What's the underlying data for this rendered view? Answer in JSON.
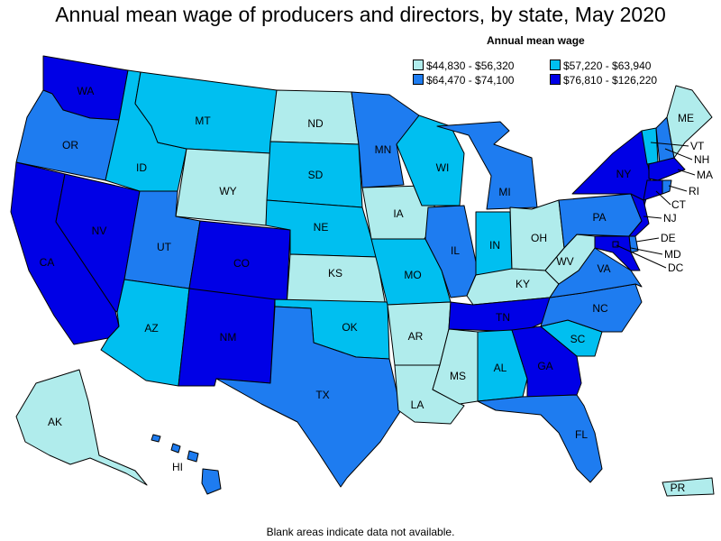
{
  "title": "Annual mean wage of producers and directors, by state, May 2020",
  "footnote": "Blank areas indicate data not available.",
  "legend": {
    "title": "Annual mean wage",
    "items": [
      {
        "label": "$44,830 - $56,320",
        "color": "#b0ecec"
      },
      {
        "label": "$57,220 - $63,940",
        "color": "#00bff0"
      },
      {
        "label": "$64,470 - $74,100",
        "color": "#1e7cf0"
      },
      {
        "label": "$76,810 - $126,220",
        "color": "#0000e6"
      }
    ]
  },
  "states": [
    {
      "code": "WA",
      "label": "WA",
      "tier": 3
    },
    {
      "code": "OR",
      "label": "OR",
      "tier": 2
    },
    {
      "code": "CA",
      "label": "CA",
      "tier": 3
    },
    {
      "code": "NV",
      "label": "NV",
      "tier": 3
    },
    {
      "code": "ID",
      "label": "ID",
      "tier": 1
    },
    {
      "code": "MT",
      "label": "MT",
      "tier": 1
    },
    {
      "code": "WY",
      "label": "WY",
      "tier": 0
    },
    {
      "code": "UT",
      "label": "UT",
      "tier": 2
    },
    {
      "code": "AZ",
      "label": "AZ",
      "tier": 1
    },
    {
      "code": "CO",
      "label": "CO",
      "tier": 3
    },
    {
      "code": "NM",
      "label": "NM",
      "tier": 3
    },
    {
      "code": "ND",
      "label": "ND",
      "tier": 0
    },
    {
      "code": "SD",
      "label": "SD",
      "tier": 1
    },
    {
      "code": "NE",
      "label": "NE",
      "tier": 1
    },
    {
      "code": "KS",
      "label": "KS",
      "tier": 0
    },
    {
      "code": "OK",
      "label": "OK",
      "tier": 1
    },
    {
      "code": "TX",
      "label": "TX",
      "tier": 2
    },
    {
      "code": "MN",
      "label": "MN",
      "tier": 2
    },
    {
      "code": "IA",
      "label": "IA",
      "tier": 0
    },
    {
      "code": "MO",
      "label": "MO",
      "tier": 1
    },
    {
      "code": "AR",
      "label": "AR",
      "tier": 0
    },
    {
      "code": "LA",
      "label": "LA",
      "tier": 0
    },
    {
      "code": "WI",
      "label": "WI",
      "tier": 1
    },
    {
      "code": "IL",
      "label": "IL",
      "tier": 2
    },
    {
      "code": "MI",
      "label": "MI",
      "tier": 2
    },
    {
      "code": "IN",
      "label": "IN",
      "tier": 1
    },
    {
      "code": "OH",
      "label": "OH",
      "tier": 0
    },
    {
      "code": "KY",
      "label": "KY",
      "tier": 0
    },
    {
      "code": "TN",
      "label": "TN",
      "tier": 3
    },
    {
      "code": "MS",
      "label": "MS",
      "tier": 0
    },
    {
      "code": "AL",
      "label": "AL",
      "tier": 1
    },
    {
      "code": "GA",
      "label": "GA",
      "tier": 3
    },
    {
      "code": "FL",
      "label": "FL",
      "tier": 2
    },
    {
      "code": "SC",
      "label": "SC",
      "tier": 1
    },
    {
      "code": "NC",
      "label": "NC",
      "tier": 2
    },
    {
      "code": "VA",
      "label": "VA",
      "tier": 2
    },
    {
      "code": "WV",
      "label": "WV",
      "tier": 0
    },
    {
      "code": "PA",
      "label": "PA",
      "tier": 2
    },
    {
      "code": "NY",
      "label": "NY",
      "tier": 3
    },
    {
      "code": "VT",
      "label": "VT",
      "tier": 1
    },
    {
      "code": "NH",
      "label": "NH",
      "tier": 2
    },
    {
      "code": "ME",
      "label": "ME",
      "tier": 0
    },
    {
      "code": "MA",
      "label": "MA",
      "tier": 3
    },
    {
      "code": "CT",
      "label": "CT",
      "tier": 3
    },
    {
      "code": "RI",
      "label": "RI",
      "tier": 2
    },
    {
      "code": "NJ",
      "label": "NJ",
      "tier": 3
    },
    {
      "code": "DE",
      "label": "DE",
      "tier": 2
    },
    {
      "code": "MD",
      "label": "MD",
      "tier": 3
    },
    {
      "code": "DC",
      "label": "DC",
      "tier": 3
    },
    {
      "code": "AK",
      "label": "AK",
      "tier": 0
    },
    {
      "code": "HI",
      "label": "HI",
      "tier": 2
    },
    {
      "code": "PR",
      "label": "PR",
      "tier": 0
    }
  ]
}
